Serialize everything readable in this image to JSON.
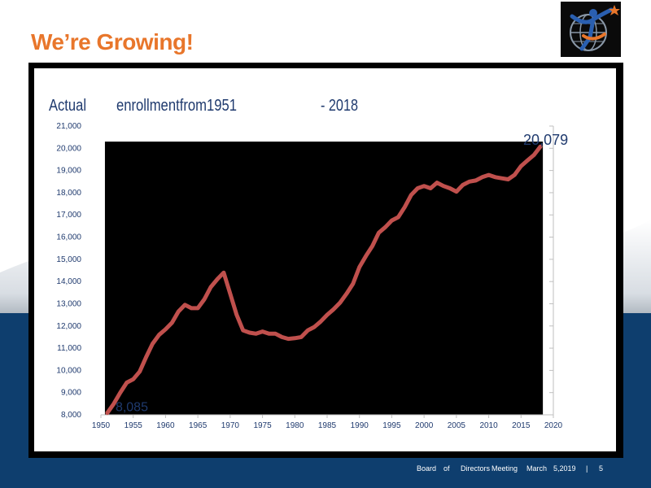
{
  "slide": {
    "title": "We’re Growing!",
    "title_color": "#e8762b",
    "background_band_color": "#0e3e6e"
  },
  "logo": {
    "icon": "person-globe-star-icon"
  },
  "footer": {
    "words": [
      "Board",
      "of",
      "Directors",
      "Meeting",
      "March",
      "5,2019",
      "|",
      "5"
    ]
  },
  "chart_data": {
    "type": "line",
    "title_parts": [
      "Actual",
      "enrollmentfrom1951",
      "- 2018"
    ],
    "xlabel": "",
    "ylabel": "",
    "xlim": [
      1950,
      2020
    ],
    "ylim": [
      8000,
      21000
    ],
    "x_ticks": [
      1950,
      1955,
      1960,
      1965,
      1970,
      1975,
      1980,
      1985,
      1990,
      1995,
      2000,
      2005,
      2010,
      2015,
      2020
    ],
    "y_ticks": [
      "8,000",
      "9,000",
      "10,000",
      "11,000",
      "12,000",
      "13,000",
      "14,000",
      "15,000",
      "16,000",
      "17,000",
      "18,000",
      "19,000",
      "20,000",
      "21,000"
    ],
    "plot_background": "#000000",
    "line_color": "#c0504d",
    "annotations": [
      {
        "label": "8,085",
        "x": 1951,
        "y": 8085
      },
      {
        "label": "20,079",
        "x": 2018,
        "y": 20079
      }
    ],
    "series": [
      {
        "x": [
          1951,
          1952,
          1953,
          1954,
          1955,
          1956,
          1957,
          1958,
          1959,
          1960,
          1961,
          1962,
          1963,
          1964,
          1965,
          1966,
          1967,
          1968,
          1969,
          1970,
          1971,
          1972,
          1973,
          1974,
          1975,
          1976,
          1977,
          1978,
          1979,
          1980,
          1981,
          1982,
          1983,
          1984,
          1985,
          1986,
          1987,
          1988,
          1989,
          1990,
          1991,
          1992,
          1993,
          1994,
          1995,
          1996,
          1997,
          1998,
          1999,
          2000,
          2001,
          2002,
          2003,
          2004,
          2005,
          2006,
          2007,
          2008,
          2009,
          2010,
          2011,
          2012,
          2013,
          2014,
          2015,
          2016,
          2017,
          2018
        ],
        "values": [
          8085,
          8500,
          9000,
          9450,
          9600,
          9950,
          10600,
          11200,
          11600,
          11850,
          12150,
          12650,
          12950,
          12800,
          12800,
          13200,
          13750,
          14100,
          14400,
          13450,
          12500,
          11800,
          11700,
          11650,
          11750,
          11650,
          11650,
          11500,
          11420,
          11450,
          11500,
          11800,
          11950,
          12200,
          12500,
          12750,
          13050,
          13450,
          13900,
          14650,
          15150,
          15600,
          16200,
          16450,
          16750,
          16900,
          17350,
          17900,
          18200,
          18300,
          18200,
          18450,
          18300,
          18200,
          18050,
          18350,
          18500,
          18550,
          18700,
          18800,
          18700,
          18650,
          18600,
          18800,
          19200,
          19450,
          19700,
          20079
        ]
      }
    ]
  }
}
